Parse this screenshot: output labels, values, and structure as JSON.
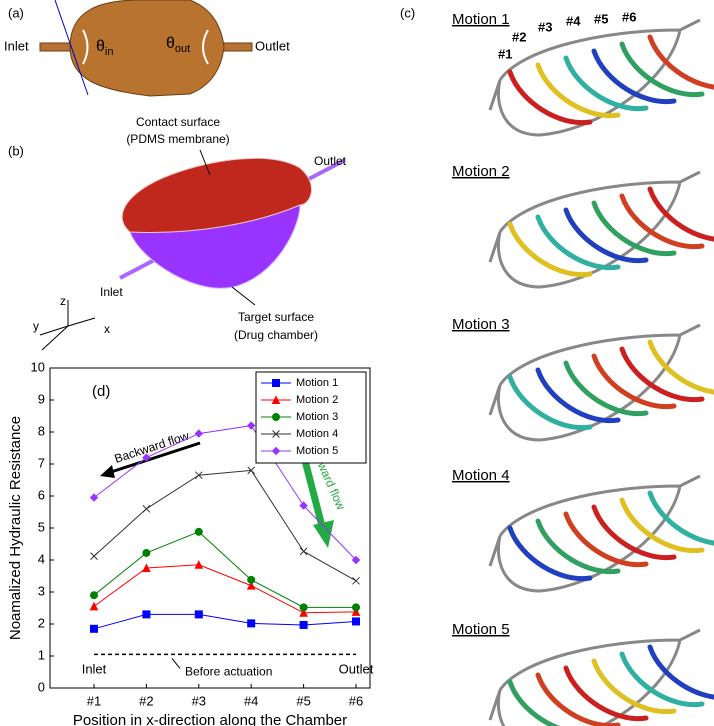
{
  "panels": {
    "a": {
      "label": "(a)",
      "inlet": "Inlet",
      "outlet": "Outlet",
      "theta_in": {
        "symbol": "θ",
        "sub": "in"
      },
      "theta_out": {
        "symbol": "θ",
        "sub": "out"
      }
    },
    "b": {
      "label": "(b)",
      "contact": "Contact surface",
      "contact_note": "(PDMS membrane)",
      "outlet": "Outlet",
      "inlet": "Inlet",
      "target": "Target surface",
      "target_note": "(Drug chamber)",
      "axes": [
        "z",
        "y",
        "x"
      ]
    },
    "c": {
      "label": "(c)",
      "motions": [
        "Motion 1",
        "Motion 2",
        "Motion 3",
        "Motion 4",
        "Motion 5"
      ],
      "positions": [
        "#1",
        "#2",
        "#3",
        "#4",
        "#5",
        "#6"
      ]
    }
  },
  "chart_data": {
    "type": "line",
    "panel_label": "(d)",
    "xlabel": "Position in x-direction along the Chamber",
    "ylabel": "Noamalized Hydraulic Resistance",
    "categories": [
      "#1",
      "#2",
      "#3",
      "#4",
      "#5",
      "#6"
    ],
    "ylim": [
      0,
      10
    ],
    "yticks": [
      0,
      1,
      2,
      3,
      4,
      5,
      6,
      7,
      8,
      9,
      10
    ],
    "legend": "upper right",
    "series": [
      {
        "name": "Motion 1",
        "color": "#0000ff",
        "marker": "square",
        "values": [
          1.85,
          2.3,
          2.3,
          2.02,
          1.97,
          2.08
        ]
      },
      {
        "name": "Motion 2",
        "color": "#ff0000",
        "marker": "triangle",
        "values": [
          2.55,
          3.75,
          3.85,
          3.2,
          2.35,
          2.38
        ]
      },
      {
        "name": "Motion 3",
        "color": "#008000",
        "marker": "circle",
        "values": [
          2.9,
          4.22,
          4.88,
          3.38,
          2.52,
          2.52
        ]
      },
      {
        "name": "Motion 4",
        "color": "#333333",
        "marker": "x",
        "values": [
          4.12,
          5.6,
          6.65,
          6.8,
          4.27,
          3.35
        ]
      },
      {
        "name": "Motion 5",
        "color": "#9933ff",
        "marker": "diamond",
        "values": [
          5.95,
          7.2,
          7.95,
          8.2,
          5.7,
          4.0
        ]
      }
    ],
    "reference": {
      "value": 1.05,
      "label": "Before actuation"
    },
    "annotations": {
      "backward": "Backward flow",
      "forward": "Forward flow",
      "inlet": "Inlet",
      "outlet": "Outlet"
    }
  }
}
